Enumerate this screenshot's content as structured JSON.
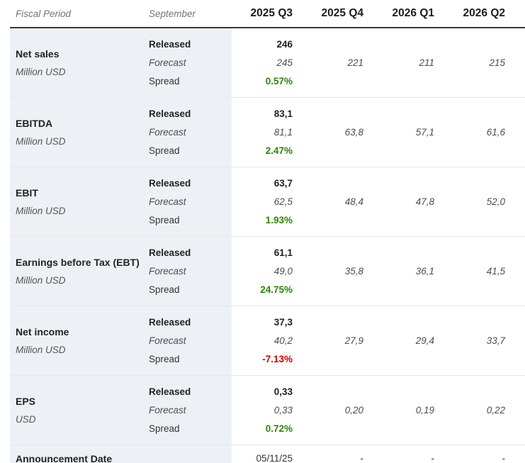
{
  "header": {
    "fiscal_period_label": "Fiscal Period",
    "month_label": "September"
  },
  "colors": {
    "positive": "#2e8500",
    "negative": "#cc0000",
    "header_rule": "#383838",
    "label_background": "#edf1f5",
    "group_separator": "#e9e7e6"
  },
  "chart_data": {
    "type": "table",
    "quarter_columns": [
      "2025 Q3",
      "2025 Q4",
      "2026 Q1",
      "2026 Q2"
    ],
    "row_labels": {
      "released": "Released",
      "forecast": "Forecast",
      "spread": "Spread"
    },
    "metrics": [
      {
        "name": "Net sales",
        "unit": "Million USD",
        "released": "246",
        "forecast": [
          "245",
          "221",
          "211",
          "215"
        ],
        "spread": "0.57%"
      },
      {
        "name": "EBITDA",
        "unit": "Million USD",
        "released": "83,1",
        "forecast": [
          "81,1",
          "63,8",
          "57,1",
          "61,6"
        ],
        "spread": "2.47%"
      },
      {
        "name": "EBIT",
        "unit": "Million USD",
        "released": "63,7",
        "forecast": [
          "62,5",
          "48,4",
          "47,8",
          "52,0"
        ],
        "spread": "1.93%"
      },
      {
        "name": "Earnings before Tax (EBT)",
        "unit": "Million USD",
        "released": "61,1",
        "forecast": [
          "49,0",
          "35,8",
          "36,1",
          "41,5"
        ],
        "spread": "24.75%"
      },
      {
        "name": "Net income",
        "unit": "Million USD",
        "released": "37,3",
        "forecast": [
          "40,2",
          "27,9",
          "29,4",
          "33,7"
        ],
        "spread": "-7.13%"
      },
      {
        "name": "EPS",
        "unit": "USD",
        "released": "0,33",
        "forecast": [
          "0,33",
          "0,20",
          "0,19",
          "0,22"
        ],
        "spread": "0.72%"
      }
    ],
    "announcement": {
      "label": "Announcement Date",
      "values": [
        "05/11/25",
        "-",
        "-",
        "-"
      ]
    }
  }
}
